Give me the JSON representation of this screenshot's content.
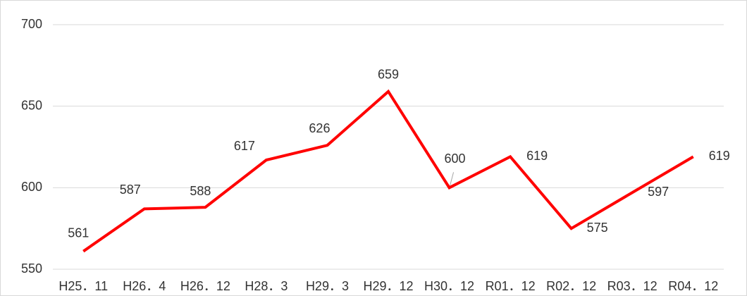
{
  "chart_data": {
    "type": "line",
    "categories": [
      "H25．11",
      "H26．4",
      "H26．12",
      "H28．3",
      "H29．3",
      "H29．12",
      "H30．12",
      "R01．12",
      "R02．12",
      "R03．12",
      "R04．12"
    ],
    "values": [
      561,
      587,
      588,
      617,
      626,
      659,
      600,
      619,
      575,
      597,
      619
    ],
    "color": "#ff0000",
    "ylim": [
      550,
      700
    ],
    "yticks": [
      550,
      600,
      650,
      700
    ],
    "grid": true
  }
}
